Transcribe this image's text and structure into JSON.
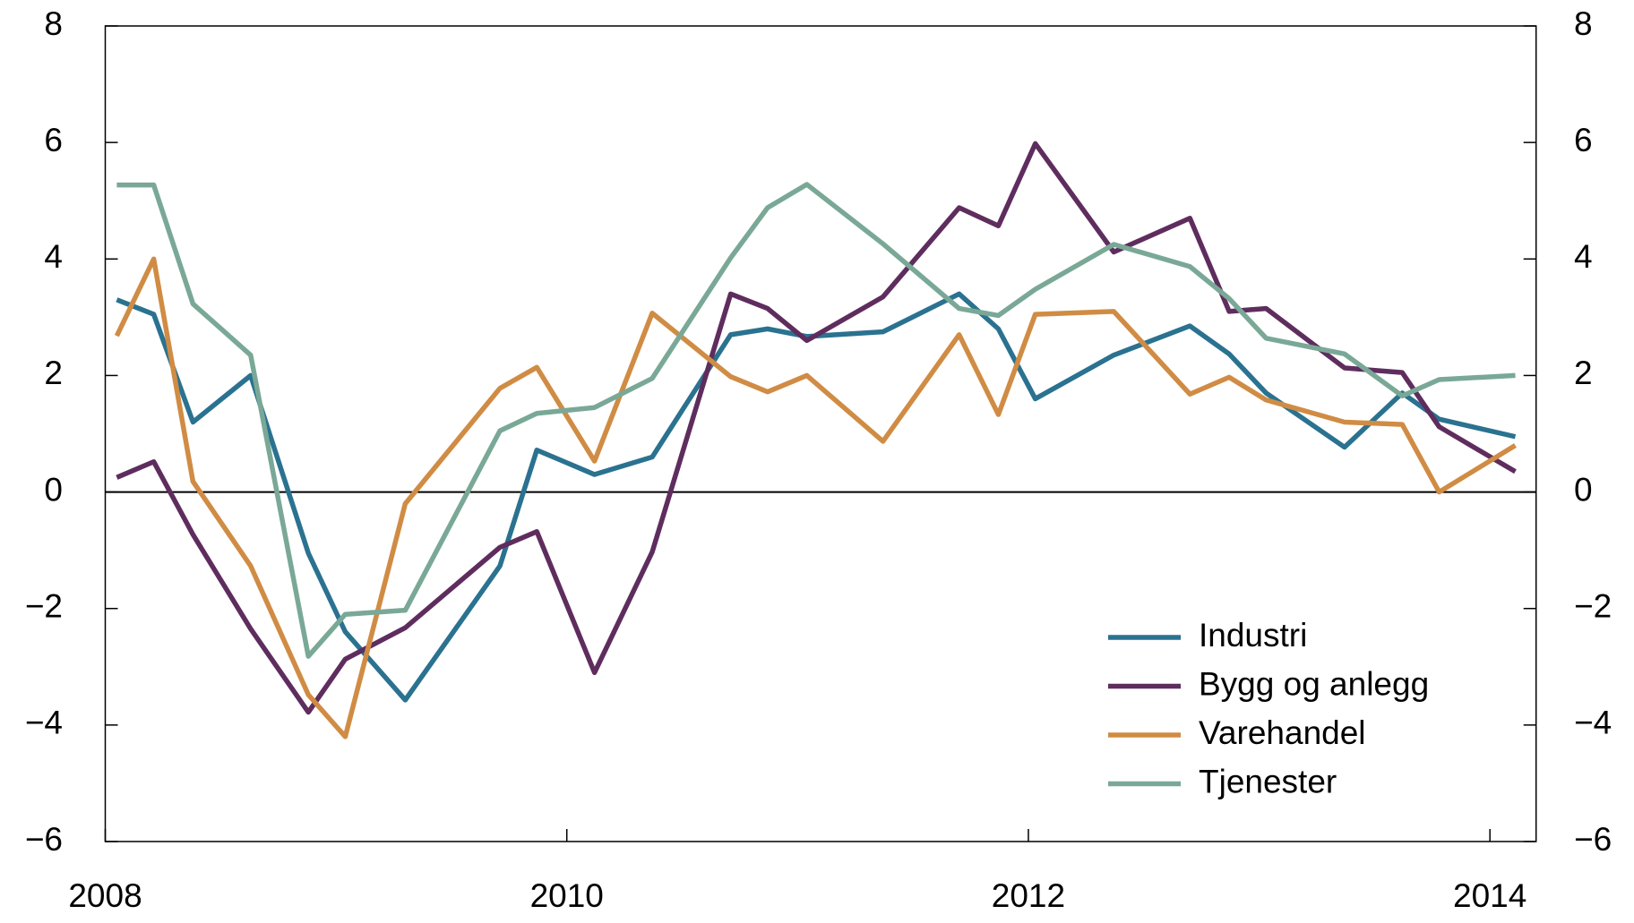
{
  "chart_data": {
    "type": "line",
    "x": [
      2008.05,
      2008.21,
      2008.38,
      2008.63,
      2008.88,
      2009.04,
      2009.3,
      2009.71,
      2009.87,
      2010.12,
      2010.37,
      2010.71,
      2010.87,
      2011.04,
      2011.37,
      2011.7,
      2011.87,
      2012.03,
      2012.37,
      2012.7,
      2012.87,
      2013.03,
      2013.37,
      2013.62,
      2013.78,
      2014.11
    ],
    "series": [
      {
        "name": "Industri",
        "color": "#2a7290",
        "values": [
          3.3,
          3.05,
          1.2,
          2.0,
          -1.05,
          -2.4,
          -3.57,
          -1.27,
          0.72,
          0.3,
          0.6,
          2.7,
          2.8,
          2.67,
          2.75,
          3.4,
          2.8,
          1.6,
          2.35,
          2.85,
          2.37,
          1.7,
          0.77,
          1.7,
          1.25,
          0.95
        ]
      },
      {
        "name": "Bygg og anlegg",
        "color": "#5e2d5e",
        "values": [
          0.25,
          0.52,
          -0.73,
          -2.35,
          -3.78,
          -2.87,
          -2.33,
          -0.95,
          -0.68,
          -3.1,
          -1.03,
          3.4,
          3.15,
          2.6,
          3.35,
          4.88,
          4.57,
          5.98,
          4.12,
          4.7,
          3.1,
          3.15,
          2.13,
          2.05,
          1.12,
          0.35
        ]
      },
      {
        "name": "Varehandel",
        "color": "#d08c44",
        "values": [
          2.68,
          4.0,
          0.18,
          -1.27,
          -3.48,
          -4.2,
          -0.2,
          1.78,
          2.14,
          0.53,
          3.07,
          1.98,
          1.72,
          2.0,
          0.87,
          2.7,
          1.33,
          3.05,
          3.1,
          1.68,
          1.97,
          1.58,
          1.2,
          1.16,
          0.0,
          0.8
        ]
      },
      {
        "name": "Tjenester",
        "color": "#7aa897",
        "values": [
          5.27,
          5.27,
          3.23,
          2.35,
          -2.82,
          -2.1,
          -2.03,
          1.05,
          1.35,
          1.45,
          1.95,
          4.02,
          4.88,
          5.28,
          4.26,
          3.15,
          3.03,
          3.48,
          4.25,
          3.87,
          3.32,
          2.64,
          2.37,
          1.65,
          1.93,
          2.0
        ]
      }
    ],
    "xlim": [
      2008,
      2014.2
    ],
    "xticks": [
      2008,
      2010,
      2012,
      2014
    ],
    "ylim": [
      -6,
      8
    ],
    "yticks": [
      {
        "value": -6,
        "label": "−6"
      },
      {
        "value": -4,
        "label": "−4"
      },
      {
        "value": -2,
        "label": "−2"
      },
      0,
      2,
      4,
      6,
      8
    ],
    "legend": "lower right"
  }
}
